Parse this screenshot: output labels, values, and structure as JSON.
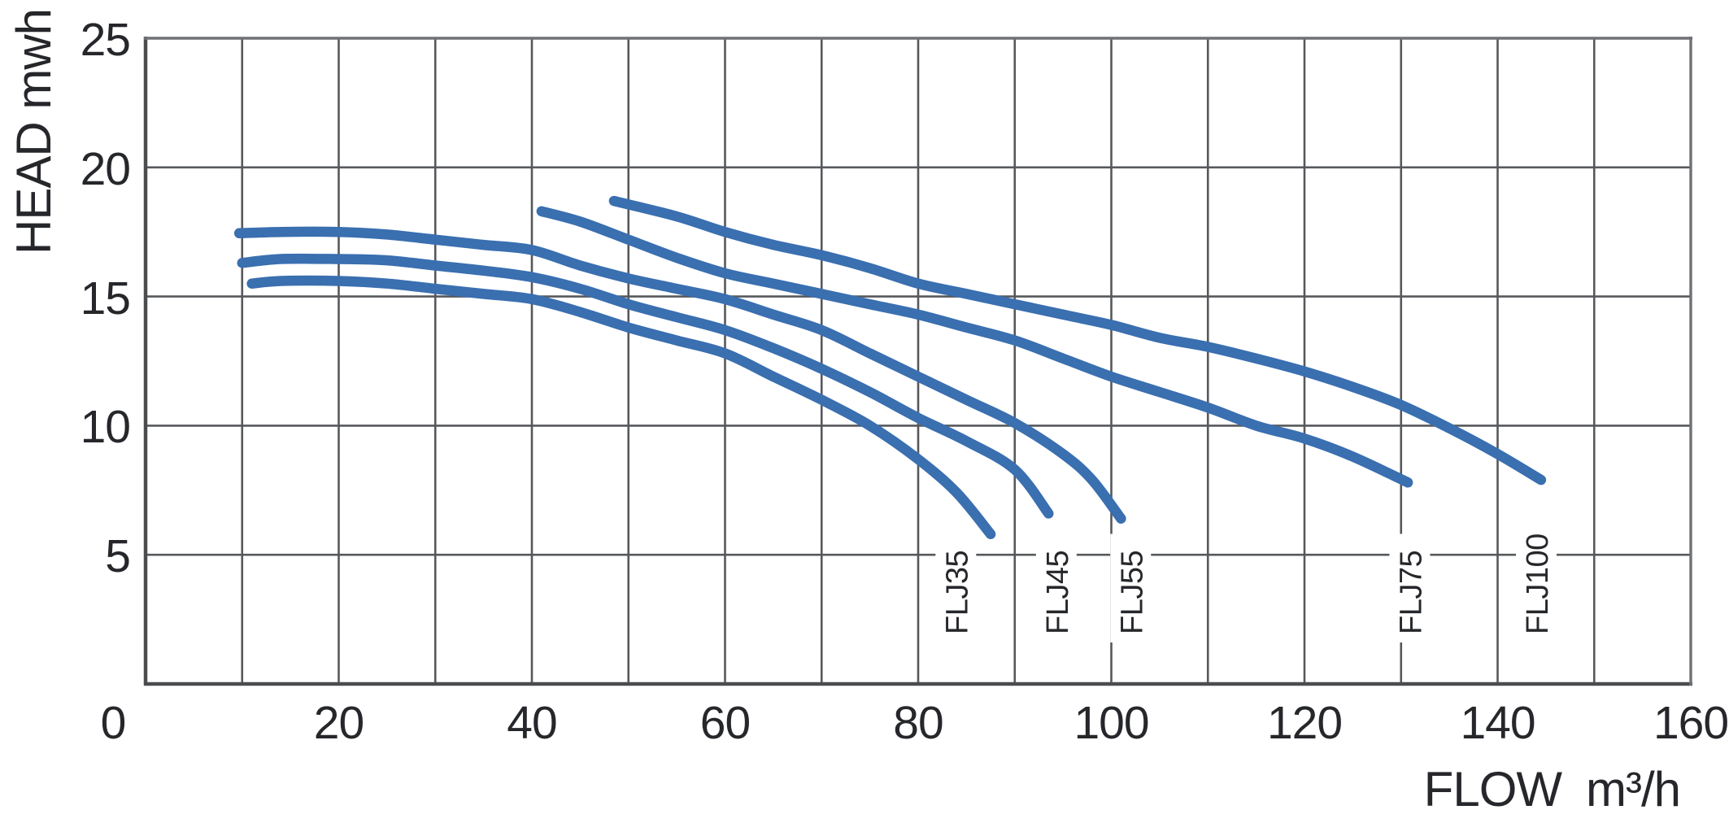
{
  "styles": {
    "background": "#ffffff",
    "curve_color": "#3a6fb0",
    "grid_color": "#56585c",
    "border_color": "#6f7174",
    "text_color": "#26272b",
    "label_bg": "#ffffff"
  },
  "axis": {
    "y_title": "HEAD mwh",
    "x_title_word": "FLOW",
    "x_title_unit": "m³/h"
  },
  "chart_data": {
    "type": "line",
    "title": "",
    "xlabel": "FLOW m³/h",
    "ylabel": "HEAD mwh",
    "xlim": [
      0,
      160
    ],
    "ylim": [
      0,
      25
    ],
    "x_ticks": [
      0,
      20,
      40,
      60,
      80,
      100,
      120,
      140,
      160
    ],
    "x_tick_offsets": {
      "0": -40
    },
    "x_minor_step": 10,
    "y_ticks": [
      25,
      20,
      15,
      10,
      5
    ],
    "y_minor_step": 5,
    "grid": true,
    "legend_position": "curve-end-labels",
    "series": [
      {
        "name": "FLJ35",
        "label_x": 83.9,
        "points": [
          [
            11,
            15.5
          ],
          [
            14,
            15.6
          ],
          [
            20,
            15.6
          ],
          [
            25,
            15.5
          ],
          [
            30,
            15.3
          ],
          [
            35,
            15.1
          ],
          [
            40,
            14.9
          ],
          [
            45,
            14.4
          ],
          [
            50,
            13.8
          ],
          [
            55,
            13.3
          ],
          [
            60,
            12.8
          ],
          [
            65,
            11.9
          ],
          [
            70,
            11.0
          ],
          [
            75,
            10.0
          ],
          [
            80,
            8.7
          ],
          [
            84,
            7.4
          ],
          [
            87.5,
            5.8
          ]
        ]
      },
      {
        "name": "FLJ45",
        "label_x": 94.3,
        "points": [
          [
            10,
            16.3
          ],
          [
            14,
            16.45
          ],
          [
            20,
            16.45
          ],
          [
            25,
            16.4
          ],
          [
            30,
            16.2
          ],
          [
            35,
            16.0
          ],
          [
            40,
            15.75
          ],
          [
            45,
            15.3
          ],
          [
            50,
            14.7
          ],
          [
            55,
            14.2
          ],
          [
            60,
            13.7
          ],
          [
            65,
            13.0
          ],
          [
            70,
            12.2
          ],
          [
            75,
            11.3
          ],
          [
            80,
            10.3
          ],
          [
            85,
            9.4
          ],
          [
            90,
            8.3
          ],
          [
            93.5,
            6.6
          ]
        ]
      },
      {
        "name": "FLJ55",
        "label_x": 102.0,
        "points": [
          [
            9.7,
            17.45
          ],
          [
            14,
            17.5
          ],
          [
            20,
            17.5
          ],
          [
            25,
            17.4
          ],
          [
            30,
            17.2
          ],
          [
            35,
            17.0
          ],
          [
            40,
            16.8
          ],
          [
            45,
            16.2
          ],
          [
            50,
            15.7
          ],
          [
            55,
            15.3
          ],
          [
            60,
            14.9
          ],
          [
            65,
            14.3
          ],
          [
            70,
            13.7
          ],
          [
            75,
            12.8
          ],
          [
            80,
            11.9
          ],
          [
            85,
            11.0
          ],
          [
            90,
            10.1
          ],
          [
            95,
            8.9
          ],
          [
            98,
            7.9
          ],
          [
            101,
            6.4
          ]
        ]
      },
      {
        "name": "FLJ75",
        "label_x": 130.9,
        "points": [
          [
            41,
            18.3
          ],
          [
            45,
            17.9
          ],
          [
            50,
            17.2
          ],
          [
            55,
            16.5
          ],
          [
            60,
            15.9
          ],
          [
            65,
            15.5
          ],
          [
            70,
            15.1
          ],
          [
            75,
            14.7
          ],
          [
            80,
            14.3
          ],
          [
            85,
            13.8
          ],
          [
            90,
            13.3
          ],
          [
            95,
            12.6
          ],
          [
            100,
            11.9
          ],
          [
            105,
            11.3
          ],
          [
            110,
            10.7
          ],
          [
            115,
            10.0
          ],
          [
            120,
            9.5
          ],
          [
            125,
            8.8
          ],
          [
            130.7,
            7.8
          ]
        ]
      },
      {
        "name": "FLJ100",
        "label_x": 144.0,
        "points": [
          [
            48.5,
            18.7
          ],
          [
            55,
            18.1
          ],
          [
            60,
            17.5
          ],
          [
            65,
            17.0
          ],
          [
            70,
            16.6
          ],
          [
            75,
            16.1
          ],
          [
            80,
            15.5
          ],
          [
            85,
            15.1
          ],
          [
            90,
            14.7
          ],
          [
            95,
            14.3
          ],
          [
            100,
            13.9
          ],
          [
            105,
            13.4
          ],
          [
            110,
            13.05
          ],
          [
            115,
            12.6
          ],
          [
            120,
            12.1
          ],
          [
            125,
            11.5
          ],
          [
            130,
            10.8
          ],
          [
            135,
            9.9
          ],
          [
            140,
            8.9
          ],
          [
            144.5,
            7.9
          ]
        ]
      }
    ]
  }
}
